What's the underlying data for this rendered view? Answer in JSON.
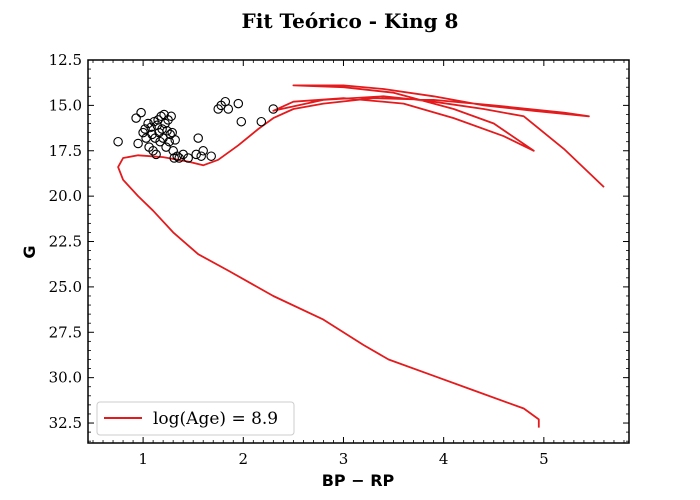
{
  "chart_data": {
    "type": "scatter",
    "title": "Fit Teórico - King 8",
    "xlabel": "BP − RP",
    "ylabel": "G",
    "xlim": [
      0.45,
      5.85
    ],
    "ylim": [
      33.6,
      12.5
    ],
    "y_inverted": true,
    "xticks": [
      {
        "value": 1,
        "label": "1"
      },
      {
        "value": 2,
        "label": "2"
      },
      {
        "value": 3,
        "label": "3"
      },
      {
        "value": 4,
        "label": "4"
      },
      {
        "value": 5,
        "label": "5"
      }
    ],
    "yticks": [
      {
        "value": 12.5,
        "label": "12.5"
      },
      {
        "value": 15.0,
        "label": "15.0"
      },
      {
        "value": 17.5,
        "label": "17.5"
      },
      {
        "value": 20.0,
        "label": "20.0"
      },
      {
        "value": 22.5,
        "label": "22.5"
      },
      {
        "value": 25.0,
        "label": "25.0"
      },
      {
        "value": 27.5,
        "label": "27.5"
      },
      {
        "value": 30.0,
        "label": "30.0"
      },
      {
        "value": 32.5,
        "label": "32.5"
      }
    ],
    "legend": {
      "placement": "bottom-left",
      "entries": [
        {
          "label": "log(Age) = 8.9",
          "color": "#e41a1c"
        }
      ]
    },
    "series": [
      {
        "name": "log(Age) = 8.9",
        "kind": "line",
        "color": "#e41a1c",
        "points": [
          [
            4.95,
            32.75
          ],
          [
            4.95,
            32.3
          ],
          [
            4.8,
            31.7
          ],
          [
            4.3,
            30.7
          ],
          [
            3.9,
            29.9
          ],
          [
            3.45,
            29.0
          ],
          [
            3.2,
            28.2
          ],
          [
            2.8,
            26.8
          ],
          [
            2.3,
            25.5
          ],
          [
            1.85,
            24.1
          ],
          [
            1.55,
            23.2
          ],
          [
            1.3,
            22.0
          ],
          [
            1.1,
            20.8
          ],
          [
            0.95,
            20.0
          ],
          [
            0.8,
            19.1
          ],
          [
            0.75,
            18.4
          ],
          [
            0.8,
            17.9
          ],
          [
            0.95,
            17.75
          ],
          [
            1.2,
            17.85
          ],
          [
            1.45,
            18.1
          ],
          [
            1.6,
            18.3
          ],
          [
            1.75,
            18.0
          ],
          [
            1.95,
            17.2
          ],
          [
            2.15,
            16.3
          ],
          [
            2.3,
            15.7
          ],
          [
            2.5,
            15.2
          ],
          [
            2.8,
            14.9
          ],
          [
            3.3,
            14.6
          ],
          [
            3.9,
            14.7
          ],
          [
            4.5,
            15.0
          ],
          [
            5.2,
            15.4
          ],
          [
            5.45,
            15.6
          ],
          [
            4.9,
            15.3
          ],
          [
            4.4,
            15.0
          ],
          [
            3.9,
            14.5
          ],
          [
            3.4,
            14.1
          ],
          [
            3.0,
            13.9
          ],
          [
            2.5,
            13.9
          ],
          [
            3.0,
            14.0
          ],
          [
            3.5,
            14.3
          ],
          [
            4.1,
            15.2
          ],
          [
            4.5,
            16.0
          ],
          [
            4.9,
            17.5
          ],
          [
            4.6,
            16.7
          ],
          [
            4.1,
            15.7
          ],
          [
            3.6,
            14.9
          ],
          [
            3.0,
            14.6
          ],
          [
            2.5,
            14.8
          ],
          [
            2.3,
            15.3
          ],
          [
            2.8,
            14.7
          ],
          [
            3.4,
            14.5
          ],
          [
            3.9,
            14.8
          ],
          [
            4.4,
            15.2
          ],
          [
            4.8,
            15.6
          ],
          [
            5.2,
            17.4
          ],
          [
            5.6,
            19.5
          ]
        ]
      },
      {
        "name": "",
        "kind": "scatter",
        "marker": "open-circle",
        "color": "#000000",
        "points": [
          [
            0.75,
            17.0
          ],
          [
            0.93,
            15.7
          ],
          [
            0.98,
            15.4
          ],
          [
            0.95,
            17.1
          ],
          [
            1.0,
            16.5
          ],
          [
            1.02,
            16.3
          ],
          [
            1.03,
            16.8
          ],
          [
            1.05,
            16.0
          ],
          [
            1.06,
            17.3
          ],
          [
            1.08,
            16.2
          ],
          [
            1.09,
            16.6
          ],
          [
            1.1,
            17.5
          ],
          [
            1.11,
            15.9
          ],
          [
            1.12,
            16.8
          ],
          [
            1.13,
            17.7
          ],
          [
            1.14,
            16.1
          ],
          [
            1.15,
            15.8
          ],
          [
            1.16,
            16.5
          ],
          [
            1.17,
            17.0
          ],
          [
            1.18,
            15.6
          ],
          [
            1.19,
            16.3
          ],
          [
            1.2,
            16.8
          ],
          [
            1.21,
            15.5
          ],
          [
            1.22,
            16.0
          ],
          [
            1.23,
            17.3
          ],
          [
            1.24,
            16.4
          ],
          [
            1.25,
            15.8
          ],
          [
            1.26,
            17.0
          ],
          [
            1.27,
            16.6
          ],
          [
            1.28,
            15.6
          ],
          [
            1.29,
            16.5
          ],
          [
            1.3,
            17.5
          ],
          [
            1.31,
            17.9
          ],
          [
            1.32,
            16.9
          ],
          [
            1.34,
            17.8
          ],
          [
            1.36,
            17.9
          ],
          [
            1.4,
            17.7
          ],
          [
            1.45,
            17.9
          ],
          [
            1.53,
            17.7
          ],
          [
            1.55,
            16.8
          ],
          [
            1.58,
            17.8
          ],
          [
            1.6,
            17.5
          ],
          [
            1.68,
            17.8
          ],
          [
            1.75,
            15.2
          ],
          [
            1.78,
            15.0
          ],
          [
            1.82,
            14.8
          ],
          [
            1.85,
            15.2
          ],
          [
            1.95,
            14.9
          ],
          [
            1.98,
            15.9
          ],
          [
            2.18,
            15.9
          ],
          [
            2.3,
            15.2
          ]
        ]
      }
    ]
  }
}
